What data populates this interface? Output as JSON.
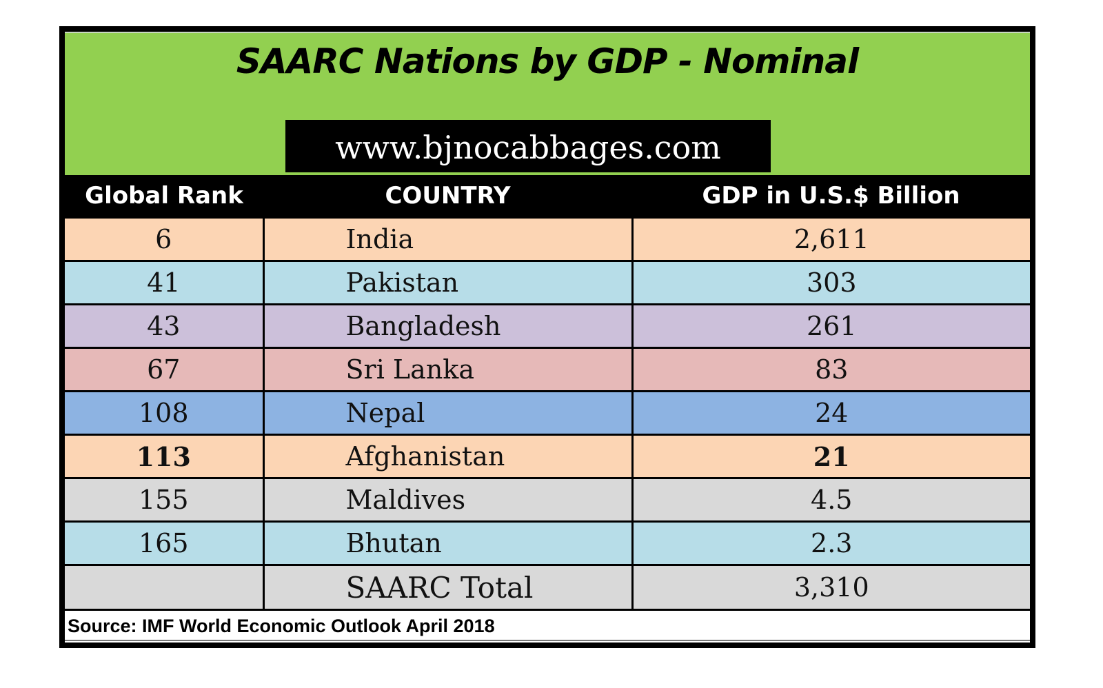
{
  "header": {
    "title": "SAARC Nations by GDP - Nominal",
    "website": "www.bjnocabbages.com",
    "colors": {
      "banner": "#92d050",
      "header_row": "#000000"
    }
  },
  "table": {
    "columns": [
      "Global Rank",
      "COUNTRY",
      "GDP in U.S.$ Billion"
    ],
    "rows": [
      {
        "rank": "6",
        "country": "India",
        "gdp": "2,611",
        "color": "#fcd5b4"
      },
      {
        "rank": "41",
        "country": "Pakistan",
        "gdp": "303",
        "color": "#b7dde8"
      },
      {
        "rank": "43",
        "country": "Bangladesh",
        "gdp": "261",
        "color": "#ccc0da"
      },
      {
        "rank": "67",
        "country": "Sri Lanka",
        "gdp": "83",
        "color": "#e6b9b8"
      },
      {
        "rank": "108",
        "country": "Nepal",
        "gdp": "24",
        "color": "#8db3e2"
      },
      {
        "rank": "113",
        "country": "Afghanistan",
        "gdp": "21",
        "color": "#fcd5b4"
      },
      {
        "rank": "155",
        "country": "Maldives",
        "gdp": "4.5",
        "color": "#d9d9d9"
      },
      {
        "rank": "165",
        "country": "Bhutan",
        "gdp": "2.3",
        "color": "#b7dde8"
      }
    ],
    "total": {
      "rank": "",
      "country": "SAARC Total",
      "gdp": "3,310",
      "color": "#d9d9d9"
    }
  },
  "footer": {
    "source": "Source: IMF World Economic Outlook April 2018"
  }
}
